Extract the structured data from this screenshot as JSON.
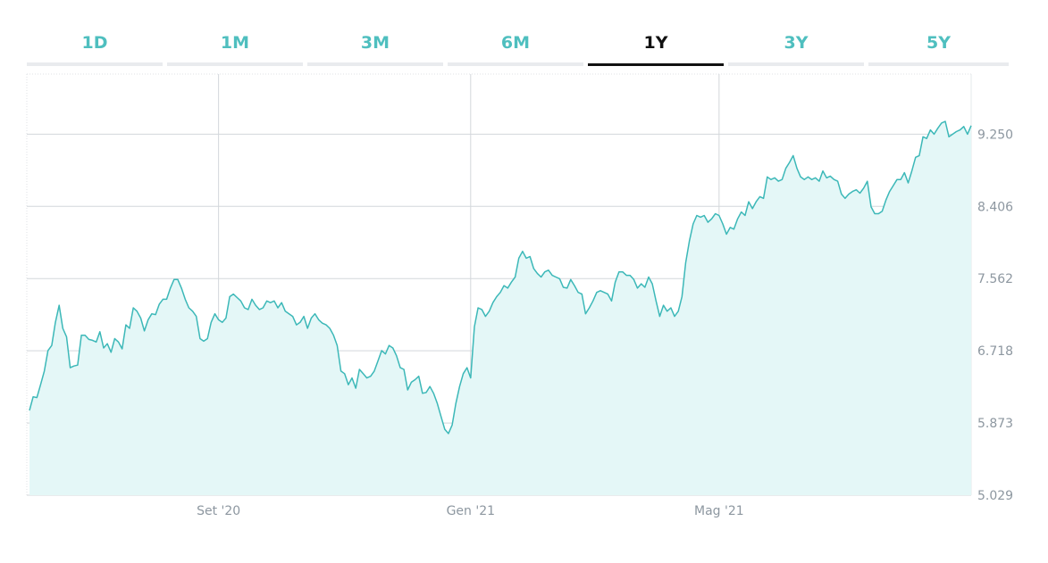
{
  "tabs": [
    {
      "label": "1D",
      "active": false
    },
    {
      "label": "1M",
      "active": false
    },
    {
      "label": "3M",
      "active": false
    },
    {
      "label": "6M",
      "active": false
    },
    {
      "label": "1Y",
      "active": true
    },
    {
      "label": "3Y",
      "active": false
    },
    {
      "label": "5Y",
      "active": false
    }
  ],
  "colors": {
    "accent": "#4fbfbf",
    "line": "#3cb8b8",
    "fill": "#e4f7f7",
    "grid": "#d3d7db",
    "active_tab": "#111111"
  },
  "chart_data": {
    "type": "area",
    "title": "",
    "xlabel": "",
    "ylabel": "",
    "ylim": [
      5.029,
      9.953
    ],
    "yticks": [
      "5.029",
      "5.873",
      "6.718",
      "7.562",
      "8.406",
      "9.250"
    ],
    "y_tick_values": [
      5.029,
      5.873,
      6.718,
      7.562,
      8.406,
      9.25
    ],
    "xticks": [
      {
        "label": "Set '20",
        "index": 51
      },
      {
        "label": "Gen '21",
        "index": 119
      },
      {
        "label": "Mag '21",
        "index": 186
      }
    ],
    "grid": true,
    "series": [
      {
        "values": [
          6.02,
          6.18,
          6.17,
          6.32,
          6.48,
          6.72,
          6.78,
          7.05,
          7.25,
          6.98,
          6.88,
          6.52,
          6.54,
          6.55,
          6.9,
          6.9,
          6.85,
          6.84,
          6.82,
          6.94,
          6.75,
          6.8,
          6.7,
          6.86,
          6.82,
          6.74,
          7.02,
          6.98,
          7.22,
          7.18,
          7.1,
          6.95,
          7.08,
          7.15,
          7.14,
          7.26,
          7.32,
          7.32,
          7.45,
          7.55,
          7.55,
          7.45,
          7.32,
          7.22,
          7.18,
          7.12,
          6.86,
          6.83,
          6.86,
          7.05,
          7.15,
          7.08,
          7.05,
          7.1,
          7.35,
          7.38,
          7.34,
          7.3,
          7.22,
          7.2,
          7.32,
          7.25,
          7.2,
          7.22,
          7.3,
          7.28,
          7.3,
          7.22,
          7.28,
          7.18,
          7.15,
          7.12,
          7.02,
          7.05,
          7.12,
          6.98,
          7.1,
          7.15,
          7.08,
          7.04,
          7.02,
          6.98,
          6.9,
          6.78,
          6.48,
          6.45,
          6.32,
          6.4,
          6.28,
          6.5,
          6.45,
          6.4,
          6.42,
          6.48,
          6.6,
          6.72,
          6.68,
          6.78,
          6.75,
          6.66,
          6.52,
          6.5,
          6.26,
          6.35,
          6.38,
          6.42,
          6.22,
          6.23,
          6.3,
          6.22,
          6.1,
          5.95,
          5.8,
          5.75,
          5.85,
          6.1,
          6.3,
          6.45,
          6.52,
          6.4,
          7.0,
          7.22,
          7.2,
          7.12,
          7.18,
          7.28,
          7.35,
          7.4,
          7.48,
          7.45,
          7.52,
          7.58,
          7.8,
          7.88,
          7.8,
          7.82,
          7.68,
          7.62,
          7.58,
          7.64,
          7.66,
          7.6,
          7.58,
          7.56,
          7.46,
          7.45,
          7.55,
          7.48,
          7.4,
          7.38,
          7.15,
          7.22,
          7.3,
          7.4,
          7.42,
          7.4,
          7.38,
          7.3,
          7.52,
          7.64,
          7.64,
          7.6,
          7.6,
          7.55,
          7.45,
          7.5,
          7.46,
          7.58,
          7.5,
          7.3,
          7.12,
          7.25,
          7.18,
          7.22,
          7.12,
          7.18,
          7.35,
          7.75,
          8.0,
          8.2,
          8.3,
          8.28,
          8.3,
          8.22,
          8.26,
          8.32,
          8.3,
          8.2,
          8.08,
          8.16,
          8.14,
          8.26,
          8.34,
          8.3,
          8.46,
          8.38,
          8.46,
          8.52,
          8.5,
          8.75,
          8.72,
          8.74,
          8.7,
          8.72,
          8.85,
          8.92,
          9.0,
          8.85,
          8.75,
          8.72,
          8.75,
          8.72,
          8.74,
          8.7,
          8.82,
          8.74,
          8.76,
          8.72,
          8.7,
          8.55,
          8.5,
          8.55,
          8.58,
          8.6,
          8.56,
          8.62,
          8.7,
          8.4,
          8.32,
          8.32,
          8.35,
          8.48,
          8.58,
          8.65,
          8.72,
          8.72,
          8.8,
          8.68,
          8.82,
          8.98,
          9.0,
          9.22,
          9.2,
          9.3,
          9.25,
          9.32,
          9.38,
          9.4,
          9.22,
          9.25,
          9.28,
          9.3,
          9.34,
          9.25,
          9.35
        ]
      }
    ]
  }
}
